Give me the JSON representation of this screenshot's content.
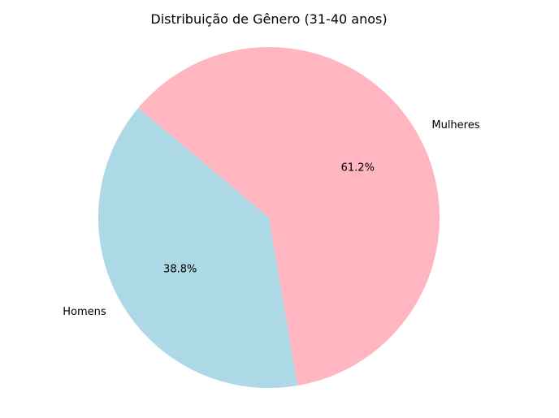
{
  "chart_data": {
    "type": "pie",
    "title": "Distribuição de Gênero (31-40 anos)",
    "categories": [
      "Homens",
      "Mulheres"
    ],
    "values": [
      38.8,
      61.2
    ],
    "labels": [
      "38.8%",
      "61.2%"
    ],
    "colors": [
      "#add8e6",
      "#ffb6c1"
    ],
    "start_angle_deg": 140,
    "direction": "counterclockwise"
  }
}
